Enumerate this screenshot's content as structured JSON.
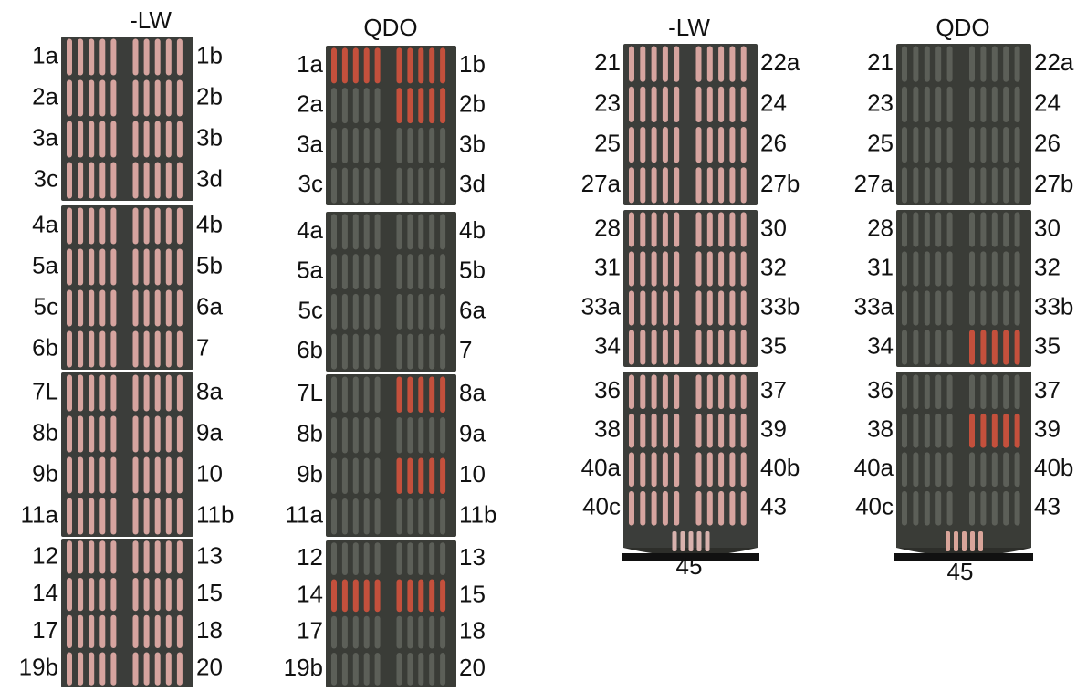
{
  "columns": [
    {
      "header": "-LW",
      "plates": [
        {
          "rows": [
            {
              "left": "1a",
              "right": "1b"
            },
            {
              "left": "2a",
              "right": "2b"
            },
            {
              "left": "3a",
              "right": "3b"
            },
            {
              "left": "3c",
              "right": "3d"
            }
          ]
        },
        {
          "rows": [
            {
              "left": "4a",
              "right": "4b"
            },
            {
              "left": "5a",
              "right": "5b"
            },
            {
              "left": "5c",
              "right": "6a"
            },
            {
              "left": "6b",
              "right": "7"
            }
          ]
        },
        {
          "rows": [
            {
              "left": "7L",
              "right": "8a"
            },
            {
              "left": "8b",
              "right": "9a"
            },
            {
              "left": "9b",
              "right": "10"
            },
            {
              "left": "11a",
              "right": "11b"
            }
          ]
        },
        {
          "rows": [
            {
              "left": "12",
              "right": "13"
            },
            {
              "left": "14",
              "right": "15"
            },
            {
              "left": "17",
              "right": "18"
            },
            {
              "left": "19b",
              "right": "20"
            }
          ]
        }
      ]
    },
    {
      "header": "QDO",
      "plates": [
        {
          "rows": [
            {
              "left": "1a",
              "right": "1b"
            },
            {
              "left": "2a",
              "right": "2b"
            },
            {
              "left": "3a",
              "right": "3b"
            },
            {
              "left": "3c",
              "right": "3d"
            }
          ]
        },
        {
          "rows": [
            {
              "left": "4a",
              "right": "4b"
            },
            {
              "left": "5a",
              "right": "5b"
            },
            {
              "left": "5c",
              "right": "6a"
            },
            {
              "left": "6b",
              "right": "7"
            }
          ]
        },
        {
          "rows": [
            {
              "left": "7L",
              "right": "8a"
            },
            {
              "left": "8b",
              "right": "9a"
            },
            {
              "left": "9b",
              "right": "10"
            },
            {
              "left": "11a",
              "right": "11b"
            }
          ]
        },
        {
          "rows": [
            {
              "left": "12",
              "right": "13"
            },
            {
              "left": "14",
              "right": "15"
            },
            {
              "left": "17",
              "right": "18"
            },
            {
              "left": "19b",
              "right": "20"
            }
          ]
        }
      ]
    },
    {
      "header": "-LW",
      "bottom_label": "45",
      "plates": [
        {
          "rows": [
            {
              "left": "21",
              "right": "22a"
            },
            {
              "left": "23",
              "right": "24"
            },
            {
              "left": "25",
              "right": "26"
            },
            {
              "left": "27a",
              "right": "27b"
            }
          ]
        },
        {
          "rows": [
            {
              "left": "28",
              "right": "30"
            },
            {
              "left": "31",
              "right": "32"
            },
            {
              "left": "33a",
              "right": "33b"
            },
            {
              "left": "34",
              "right": "35"
            }
          ]
        },
        {
          "rows": [
            {
              "left": "36",
              "right": "37"
            },
            {
              "left": "38",
              "right": "39"
            },
            {
              "left": "40a",
              "right": "40b"
            },
            {
              "left": "40c",
              "right": "43"
            }
          ]
        }
      ]
    },
    {
      "header": "QDO",
      "bottom_label": "45",
      "plates": [
        {
          "rows": [
            {
              "left": "21",
              "right": "22a"
            },
            {
              "left": "23",
              "right": "24"
            },
            {
              "left": "25",
              "right": "26"
            },
            {
              "left": "27a",
              "right": "27b"
            }
          ]
        },
        {
          "rows": [
            {
              "left": "28",
              "right": "30"
            },
            {
              "left": "31",
              "right": "32"
            },
            {
              "left": "33a",
              "right": "33b"
            },
            {
              "left": "34",
              "right": "35"
            }
          ]
        },
        {
          "rows": [
            {
              "left": "36",
              "right": "37"
            },
            {
              "left": "38",
              "right": "39"
            },
            {
              "left": "40a",
              "right": "40b"
            },
            {
              "left": "40c",
              "right": "43"
            }
          ]
        }
      ]
    }
  ]
}
